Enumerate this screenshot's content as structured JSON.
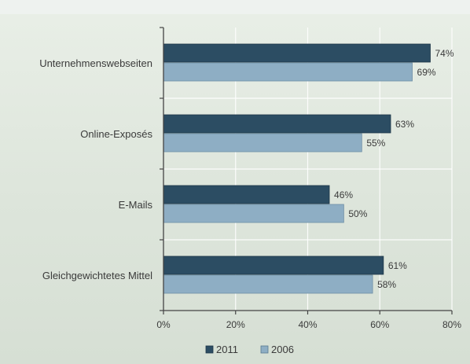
{
  "chart_data": {
    "type": "bar",
    "orientation": "horizontal",
    "categories": [
      "Unternehmenswebseiten",
      "Online-Exposés",
      "E-Mails",
      "Gleichgewichtetes Mittel"
    ],
    "series": [
      {
        "name": "2011",
        "values": [
          74,
          63,
          46,
          61
        ],
        "value_labels": [
          "74%",
          "63%",
          "46%",
          "61%"
        ],
        "color": "#2c4d63"
      },
      {
        "name": "2006",
        "values": [
          69,
          55,
          50,
          58
        ],
        "value_labels": [
          "69%",
          "55%",
          "50%",
          "58%"
        ],
        "color": "#8eaec4"
      }
    ],
    "xlim": [
      0,
      80
    ],
    "x_ticks": [
      0,
      20,
      40,
      60,
      80
    ],
    "x_tick_labels": [
      "0%",
      "20%",
      "40%",
      "60%",
      "80%"
    ],
    "grid": true,
    "legend_position": "bottom-center"
  }
}
